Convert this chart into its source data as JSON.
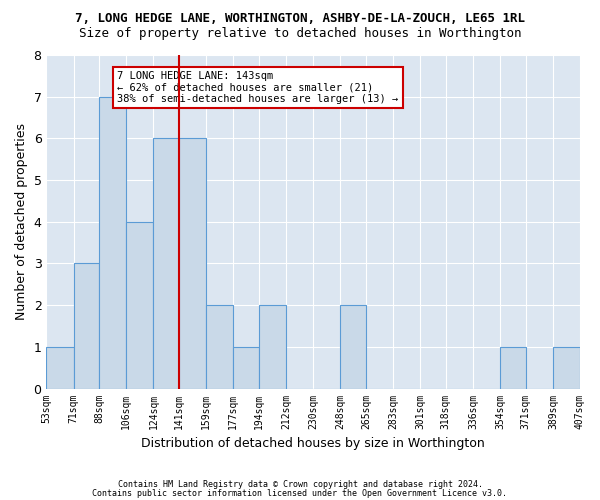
{
  "title1": "7, LONG HEDGE LANE, WORTHINGTON, ASHBY-DE-LA-ZOUCH, LE65 1RL",
  "title2": "Size of property relative to detached houses in Worthington",
  "xlabel": "Distribution of detached houses by size in Worthington",
  "ylabel": "Number of detached properties",
  "footnote1": "Contains HM Land Registry data © Crown copyright and database right 2024.",
  "footnote2": "Contains public sector information licensed under the Open Government Licence v3.0.",
  "annotation_line1": "7 LONG HEDGE LANE: 143sqm",
  "annotation_line2": "← 62% of detached houses are smaller (21)",
  "annotation_line3": "38% of semi-detached houses are larger (13) →",
  "bar_edges": [
    53,
    71,
    88,
    106,
    124,
    141,
    159,
    177,
    194,
    212,
    230,
    248,
    265,
    283,
    301,
    318,
    336,
    354,
    371,
    389,
    407
  ],
  "bar_heights": [
    1,
    3,
    7,
    4,
    6,
    6,
    2,
    1,
    2,
    0,
    0,
    2,
    0,
    0,
    0,
    0,
    0,
    1,
    0,
    1
  ],
  "bar_color": "#c9d9e8",
  "bar_edge_color": "#5b9bd5",
  "vline_color": "#cc0000",
  "vline_x": 141,
  "annotation_box_color": "#cc0000",
  "background_color": "#dce6f1",
  "ylim": [
    0,
    8
  ],
  "yticks": [
    0,
    1,
    2,
    3,
    4,
    5,
    6,
    7,
    8
  ]
}
